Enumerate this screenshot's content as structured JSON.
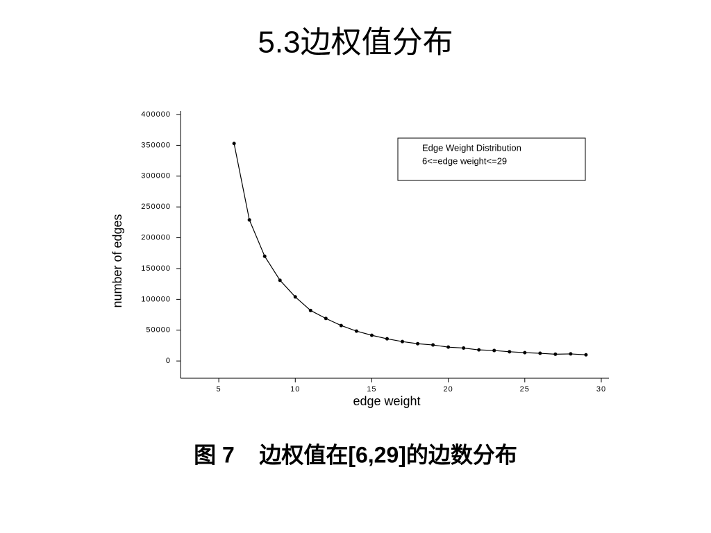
{
  "chart_data": {
    "type": "line",
    "title": "5.3边权值分布",
    "caption": "图 7    边权值在[6,29]的边数分布",
    "x_label": "edge weight",
    "y_label": "number of edges",
    "legend_title": "Edge Weight Distribution",
    "annotation": "6<=edge weight<=29",
    "x": [
      6,
      7,
      8,
      9,
      10,
      11,
      12,
      13,
      14,
      15,
      16,
      17,
      18,
      19,
      20,
      21,
      22,
      23,
      24,
      25,
      26,
      27,
      28,
      29
    ],
    "series": [
      {
        "name": "Edge Weight Distribution",
        "color": "#000000",
        "values": [
          353000,
          229000,
          170000,
          131000,
          104000,
          82000,
          69000,
          57500,
          48500,
          41700,
          36000,
          31500,
          28000,
          26000,
          22500,
          21000,
          18000,
          17000,
          15000,
          13500,
          12500,
          11000,
          11500,
          10000
        ]
      }
    ],
    "xlim": [
      2.5,
      30.5
    ],
    "xticks": [
      5,
      10,
      15,
      20,
      25,
      30
    ],
    "ylim": [
      -28000,
      400000
    ],
    "yticks": [
      0,
      50000,
      100000,
      150000,
      200000,
      250000,
      300000,
      350000,
      400000
    ],
    "grid": false
  }
}
